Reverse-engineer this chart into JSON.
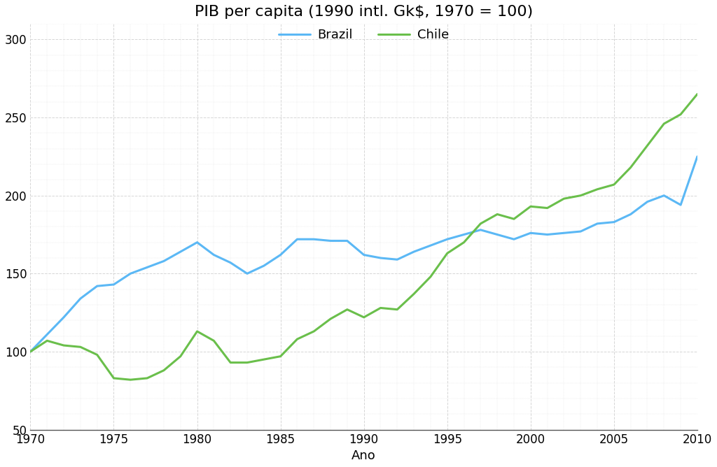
{
  "title": "PIB per capita (1990 intl. Gk$, 1970 = 100)",
  "xlabel": "Ano",
  "background_color": "#ffffff",
  "plot_bg_color": "#ffffff",
  "grid_color": "#cccccc",
  "brazil_color": "#5bb8f5",
  "chile_color": "#6abf4b",
  "brazil_label": "Brazil",
  "chile_label": "Chile",
  "years": [
    1970,
    1971,
    1972,
    1973,
    1974,
    1975,
    1976,
    1977,
    1978,
    1979,
    1980,
    1981,
    1982,
    1983,
    1984,
    1985,
    1986,
    1987,
    1988,
    1989,
    1990,
    1991,
    1992,
    1993,
    1994,
    1995,
    1996,
    1997,
    1998,
    1999,
    2000,
    2001,
    2002,
    2003,
    2004,
    2005,
    2006,
    2007,
    2008,
    2009,
    2010
  ],
  "brazil": [
    100,
    111,
    122,
    134,
    142,
    143,
    150,
    154,
    158,
    164,
    170,
    162,
    157,
    150,
    155,
    162,
    172,
    172,
    171,
    171,
    162,
    160,
    159,
    164,
    168,
    172,
    175,
    178,
    175,
    172,
    176,
    175,
    176,
    177,
    182,
    183,
    188,
    196,
    200,
    194,
    225
  ],
  "chile": [
    100,
    107,
    104,
    103,
    98,
    83,
    82,
    83,
    88,
    97,
    113,
    107,
    93,
    93,
    95,
    97,
    108,
    113,
    121,
    127,
    122,
    128,
    127,
    137,
    148,
    163,
    170,
    182,
    188,
    185,
    193,
    192,
    198,
    200,
    204,
    207,
    218,
    232,
    246,
    252,
    265
  ],
  "ylim": [
    50,
    310
  ],
  "xlim": [
    1970,
    2010
  ],
  "yticks": [
    50,
    100,
    150,
    200,
    250,
    300
  ],
  "xticks": [
    1970,
    1975,
    1980,
    1985,
    1990,
    1995,
    2000,
    2005,
    2010
  ],
  "line_width": 2.2,
  "title_fontsize": 16,
  "tick_fontsize": 12,
  "label_fontsize": 13,
  "legend_fontsize": 13
}
